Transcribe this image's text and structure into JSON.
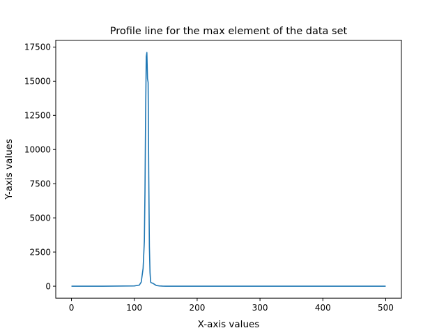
{
  "chart_data": {
    "type": "line",
    "title": "Profile line for the max element of the data set",
    "xlabel": "X-axis values",
    "ylabel": "Y-axis values",
    "xlim": [
      -25,
      525
    ],
    "ylim": [
      -875,
      18000
    ],
    "xticks": [
      0,
      100,
      200,
      300,
      400,
      500
    ],
    "yticks": [
      0,
      2500,
      5000,
      7500,
      10000,
      12500,
      15000,
      17500
    ],
    "xtick_labels": [
      "0",
      "100",
      "200",
      "300",
      "400",
      "500"
    ],
    "ytick_labels": [
      "0",
      "2500",
      "5000",
      "7500",
      "10000",
      "12500",
      "15000",
      "17500"
    ],
    "grid": false,
    "color": "#1f77b4",
    "series": [
      {
        "x": [
          0,
          50,
          100,
          108,
          111,
          114,
          116,
          117,
          118,
          119,
          120,
          121,
          122,
          123,
          124,
          125,
          126,
          127,
          130,
          135,
          140,
          145,
          150,
          200,
          300,
          400,
          500
        ],
        "y": [
          0,
          0,
          20,
          80,
          300,
          1300,
          3300,
          7000,
          12500,
          16800,
          17100,
          15200,
          14900,
          8000,
          2900,
          1000,
          300,
          250,
          200,
          50,
          20,
          5,
          0,
          0,
          0,
          0,
          0
        ]
      }
    ]
  }
}
